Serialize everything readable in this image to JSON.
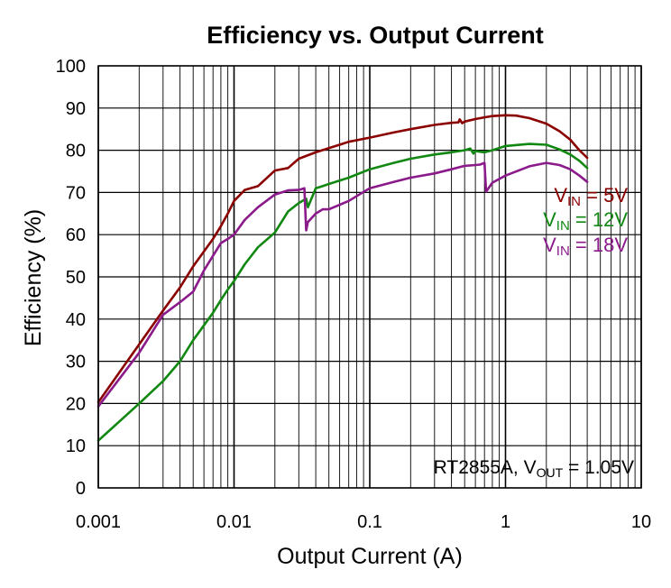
{
  "chart_data": {
    "type": "line",
    "title": "Efficiency vs. Output Current",
    "xlabel": "Output Current (A)",
    "ylabel": "Efficiency (%)",
    "xscale": "log",
    "xlim": [
      0.001,
      10
    ],
    "ylim": [
      0,
      100
    ],
    "xticks": [
      0.001,
      0.01,
      0.1,
      1,
      10
    ],
    "xtick_labels": [
      "0.001",
      "0.01",
      "0.1",
      "1",
      "10"
    ],
    "yticks": [
      0,
      10,
      20,
      30,
      40,
      50,
      60,
      70,
      80,
      90,
      100
    ],
    "ytick_labels": [
      "0",
      "10",
      "20",
      "30",
      "40",
      "50",
      "60",
      "70",
      "80",
      "90",
      "100"
    ],
    "grid": true,
    "legend_position": "right",
    "annotation": {
      "prefix": "RT2855A,  ",
      "var": "V",
      "sub": "OUT",
      "suffix": " =  1.05V"
    },
    "series": [
      {
        "name": "VIN = 5V",
        "var": "V",
        "sub": "IN",
        "suffix": " =  5V",
        "color": "#8b0000",
        "x": [
          0.001,
          0.002,
          0.003,
          0.004,
          0.005,
          0.006,
          0.007,
          0.008,
          0.009,
          0.01,
          0.012,
          0.015,
          0.02,
          0.025,
          0.03,
          0.04,
          0.05,
          0.07,
          0.1,
          0.15,
          0.2,
          0.3,
          0.4,
          0.45,
          0.46,
          0.48,
          0.5,
          0.6,
          0.7,
          0.8,
          1.0,
          1.2,
          1.5,
          2.0,
          2.5,
          3.0,
          3.5,
          4.0
        ],
        "y": [
          20.3,
          34.0,
          42.0,
          47.5,
          52.5,
          56.0,
          59.0,
          62.0,
          65.0,
          68.0,
          70.6,
          71.5,
          75.2,
          75.8,
          78.0,
          79.5,
          80.5,
          82.0,
          83.0,
          84.2,
          85.0,
          86.0,
          86.5,
          86.6,
          87.3,
          86.4,
          86.8,
          87.4,
          87.8,
          88.1,
          88.3,
          88.2,
          87.6,
          86.3,
          84.5,
          82.5,
          80.0,
          78.2
        ]
      },
      {
        "name": "VIN = 12V",
        "var": "V",
        "sub": "IN",
        "suffix": " =  12V",
        "color": "#118811",
        "x": [
          0.001,
          0.002,
          0.003,
          0.004,
          0.005,
          0.006,
          0.007,
          0.008,
          0.009,
          0.01,
          0.012,
          0.015,
          0.02,
          0.025,
          0.03,
          0.034,
          0.035,
          0.04,
          0.045,
          0.05,
          0.07,
          0.1,
          0.15,
          0.2,
          0.3,
          0.4,
          0.5,
          0.55,
          0.58,
          0.6,
          0.7,
          0.8,
          1.0,
          1.5,
          2.0,
          2.5,
          3.0,
          3.5,
          4.0
        ],
        "y": [
          11.2,
          20.0,
          25.3,
          30.0,
          35.0,
          38.5,
          41.5,
          44.5,
          47.0,
          49.0,
          53.0,
          57.0,
          60.5,
          65.5,
          67.5,
          68.5,
          66.5,
          71.0,
          71.5,
          72.0,
          73.5,
          75.5,
          77.0,
          78.0,
          79.0,
          79.5,
          80.0,
          80.4,
          79.2,
          79.8,
          79.5,
          80.0,
          81.0,
          81.5,
          81.3,
          80.2,
          79.0,
          77.5,
          75.8
        ]
      },
      {
        "name": "VIN = 18V",
        "var": "V",
        "sub": "IN",
        "suffix": " =  18V",
        "color": "#8b1a8b",
        "x": [
          0.001,
          0.002,
          0.003,
          0.004,
          0.005,
          0.006,
          0.007,
          0.008,
          0.009,
          0.01,
          0.012,
          0.015,
          0.02,
          0.025,
          0.03,
          0.033,
          0.034,
          0.035,
          0.04,
          0.045,
          0.05,
          0.07,
          0.1,
          0.15,
          0.2,
          0.3,
          0.4,
          0.5,
          0.6,
          0.65,
          0.7,
          0.72,
          0.8,
          1.0,
          1.5,
          2.0,
          2.5,
          3.0,
          3.5,
          4.0
        ],
        "y": [
          19.3,
          32.0,
          41.0,
          44.0,
          46.5,
          51.5,
          55.0,
          58.0,
          59.0,
          60.0,
          63.5,
          66.5,
          69.5,
          70.5,
          70.6,
          71.0,
          61.0,
          63.0,
          65.0,
          66.0,
          66.0,
          68.0,
          71.0,
          72.5,
          73.5,
          74.5,
          75.5,
          76.3,
          76.5,
          76.6,
          77.0,
          70.2,
          72.3,
          74.0,
          76.2,
          77.0,
          76.5,
          75.5,
          74.0,
          72.5
        ]
      }
    ]
  }
}
